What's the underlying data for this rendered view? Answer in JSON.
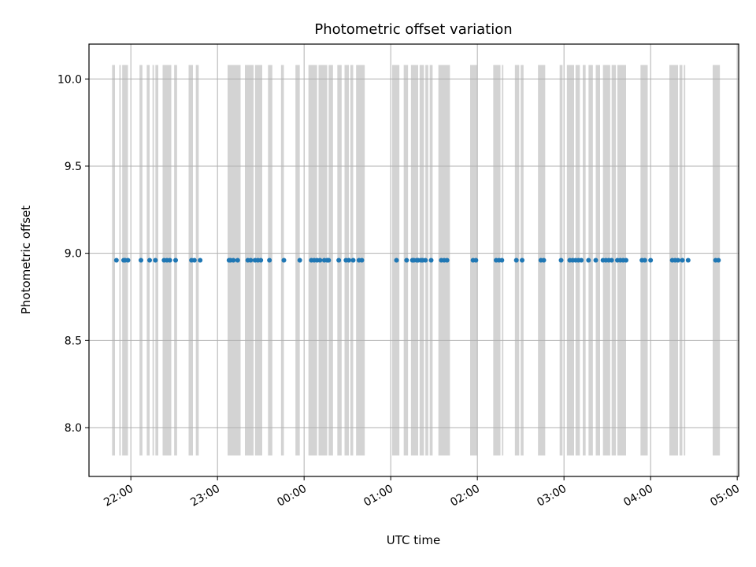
{
  "chart_data": {
    "type": "scatter",
    "title": "Photometric offset variation",
    "xlabel": "UTC time",
    "ylabel": "Photometric offset",
    "grid": true,
    "legend": "none",
    "y_ticks": [
      "8.0",
      "8.5",
      "9.0",
      "9.5",
      "10.0"
    ],
    "y_tick_values": [
      8.0,
      8.5,
      9.0,
      9.5,
      10.0
    ],
    "ylim": [
      7.72,
      10.2
    ],
    "x_ticks": [
      "22:00",
      "23:00",
      "00:00",
      "01:00",
      "02:00",
      "03:00",
      "04:00",
      "05:00"
    ],
    "x_tick_values": [
      "21:59",
      "22:59",
      "23:59",
      "00:59",
      "01:59",
      "02:59",
      "03:59",
      "04:59"
    ],
    "xlim": [
      "21:30",
      "05:00"
    ],
    "series": [
      {
        "values": [
          {
            "x": "21:49",
            "y": 8.96
          },
          {
            "x": "21:54",
            "y": 8.96
          },
          {
            "x": "21:55",
            "y": 8.96
          },
          {
            "x": "21:57",
            "y": 8.96
          },
          {
            "x": "22:06",
            "y": 8.96
          },
          {
            "x": "22:12",
            "y": 8.96
          },
          {
            "x": "22:16",
            "y": 8.96
          },
          {
            "x": "22:22",
            "y": 8.96
          },
          {
            "x": "22:24",
            "y": 8.96
          },
          {
            "x": "22:26",
            "y": 8.96
          },
          {
            "x": "22:30",
            "y": 8.96
          },
          {
            "x": "22:41",
            "y": 8.96
          },
          {
            "x": "22:43",
            "y": 8.96
          },
          {
            "x": "22:47",
            "y": 8.96
          },
          {
            "x": "23:07",
            "y": 8.96
          },
          {
            "x": "23:08",
            "y": 8.96
          },
          {
            "x": "23:10",
            "y": 8.96
          },
          {
            "x": "23:13",
            "y": 8.96
          },
          {
            "x": "23:20",
            "y": 8.96
          },
          {
            "x": "23:22",
            "y": 8.96
          },
          {
            "x": "23:25",
            "y": 8.96
          },
          {
            "x": "23:27",
            "y": 8.96
          },
          {
            "x": "23:29",
            "y": 8.96
          },
          {
            "x": "23:35",
            "y": 8.96
          },
          {
            "x": "23:45",
            "y": 8.96
          },
          {
            "x": "23:56",
            "y": 8.96
          },
          {
            "x": "00:04",
            "y": 8.96
          },
          {
            "x": "00:06",
            "y": 8.96
          },
          {
            "x": "00:08",
            "y": 8.96
          },
          {
            "x": "00:10",
            "y": 8.96
          },
          {
            "x": "00:13",
            "y": 8.96
          },
          {
            "x": "00:15",
            "y": 8.96
          },
          {
            "x": "00:16",
            "y": 8.96
          },
          {
            "x": "00:23",
            "y": 8.96
          },
          {
            "x": "00:28",
            "y": 8.96
          },
          {
            "x": "00:30",
            "y": 8.96
          },
          {
            "x": "00:33",
            "y": 8.96
          },
          {
            "x": "00:37",
            "y": 8.96
          },
          {
            "x": "00:39",
            "y": 8.96
          },
          {
            "x": "01:03",
            "y": 8.96
          },
          {
            "x": "01:10",
            "y": 8.96
          },
          {
            "x": "01:14",
            "y": 8.96
          },
          {
            "x": "01:15",
            "y": 8.96
          },
          {
            "x": "01:17",
            "y": 8.96
          },
          {
            "x": "01:18",
            "y": 8.96
          },
          {
            "x": "01:20",
            "y": 8.96
          },
          {
            "x": "01:21",
            "y": 8.96
          },
          {
            "x": "01:23",
            "y": 8.96
          },
          {
            "x": "01:27",
            "y": 8.96
          },
          {
            "x": "01:34",
            "y": 8.96
          },
          {
            "x": "01:36",
            "y": 8.96
          },
          {
            "x": "01:38",
            "y": 8.96
          },
          {
            "x": "01:56",
            "y": 8.96
          },
          {
            "x": "01:58",
            "y": 8.96
          },
          {
            "x": "02:12",
            "y": 8.96
          },
          {
            "x": "02:14",
            "y": 8.96
          },
          {
            "x": "02:16",
            "y": 8.96
          },
          {
            "x": "02:26",
            "y": 8.96
          },
          {
            "x": "02:30",
            "y": 8.96
          },
          {
            "x": "02:43",
            "y": 8.96
          },
          {
            "x": "02:45",
            "y": 8.96
          },
          {
            "x": "02:57",
            "y": 8.96
          },
          {
            "x": "03:03",
            "y": 8.96
          },
          {
            "x": "03:05",
            "y": 8.96
          },
          {
            "x": "03:07",
            "y": 8.96
          },
          {
            "x": "03:09",
            "y": 8.96
          },
          {
            "x": "03:11",
            "y": 8.96
          },
          {
            "x": "03:16",
            "y": 8.96
          },
          {
            "x": "03:21",
            "y": 8.96
          },
          {
            "x": "03:26",
            "y": 8.96
          },
          {
            "x": "03:28",
            "y": 8.96
          },
          {
            "x": "03:30",
            "y": 8.96
          },
          {
            "x": "03:32",
            "y": 8.96
          },
          {
            "x": "03:36",
            "y": 8.96
          },
          {
            "x": "03:38",
            "y": 8.96
          },
          {
            "x": "03:40",
            "y": 8.96
          },
          {
            "x": "03:42",
            "y": 8.96
          },
          {
            "x": "03:53",
            "y": 8.96
          },
          {
            "x": "03:55",
            "y": 8.96
          },
          {
            "x": "03:59",
            "y": 8.96
          },
          {
            "x": "04:14",
            "y": 8.96
          },
          {
            "x": "04:16",
            "y": 8.96
          },
          {
            "x": "04:18",
            "y": 8.96
          },
          {
            "x": "04:21",
            "y": 8.96
          },
          {
            "x": "04:25",
            "y": 8.96
          },
          {
            "x": "04:44",
            "y": 8.96
          },
          {
            "x": "04:46",
            "y": 8.96
          }
        ]
      }
    ],
    "bands": {
      "y_range": [
        7.84,
        10.08
      ],
      "spans": [
        [
          "21:46",
          "21:48"
        ],
        [
          "21:51",
          "21:52"
        ],
        [
          "21:53",
          "21:57"
        ],
        [
          "22:05",
          "22:07"
        ],
        [
          "22:10",
          "22:12"
        ],
        [
          "22:14",
          "22:15"
        ],
        [
          "22:16",
          "22:18"
        ],
        [
          "22:21",
          "22:27"
        ],
        [
          "22:29",
          "22:31"
        ],
        [
          "22:39",
          "22:42"
        ],
        [
          "22:44",
          "22:46"
        ],
        [
          "23:06",
          "23:15"
        ],
        [
          "23:18",
          "23:24"
        ],
        [
          "23:25",
          "23:30"
        ],
        [
          "23:34",
          "23:37"
        ],
        [
          "23:43",
          "23:45"
        ],
        [
          "23:53",
          "23:56"
        ],
        [
          "00:02",
          "00:08"
        ],
        [
          "00:09",
          "00:15"
        ],
        [
          "00:16",
          "00:19"
        ],
        [
          "00:22",
          "00:25"
        ],
        [
          "00:27",
          "00:30"
        ],
        [
          "00:31",
          "00:33"
        ],
        [
          "00:35",
          "00:41"
        ],
        [
          "01:00",
          "01:05"
        ],
        [
          "01:08",
          "01:11"
        ],
        [
          "01:13",
          "01:18"
        ],
        [
          "01:19",
          "01:22"
        ],
        [
          "01:23",
          "01:25"
        ],
        [
          "01:26",
          "01:28"
        ],
        [
          "01:32",
          "01:40"
        ],
        [
          "01:54",
          "01:59"
        ],
        [
          "02:10",
          "02:15"
        ],
        [
          "02:16",
          "02:17"
        ],
        [
          "02:25",
          "02:28"
        ],
        [
          "02:29",
          "02:31"
        ],
        [
          "02:41",
          "02:46"
        ],
        [
          "02:56",
          "02:58"
        ],
        [
          "03:01",
          "03:06"
        ],
        [
          "03:07",
          "03:10"
        ],
        [
          "03:12",
          "03:14"
        ],
        [
          "03:16",
          "03:19"
        ],
        [
          "03:21",
          "03:24"
        ],
        [
          "03:26",
          "03:31"
        ],
        [
          "03:32",
          "03:35"
        ],
        [
          "03:36",
          "03:42"
        ],
        [
          "03:52",
          "03:57"
        ],
        [
          "04:12",
          "04:18"
        ],
        [
          "04:19",
          "04:21"
        ],
        [
          "04:22",
          "04:23"
        ],
        [
          "04:42",
          "04:47"
        ]
      ]
    }
  },
  "colors": {
    "points": "#1f77b4",
    "bands": "#d3d3d3",
    "grid": "#b0b0b0",
    "axes": "#000000",
    "background": "#ffffff"
  }
}
